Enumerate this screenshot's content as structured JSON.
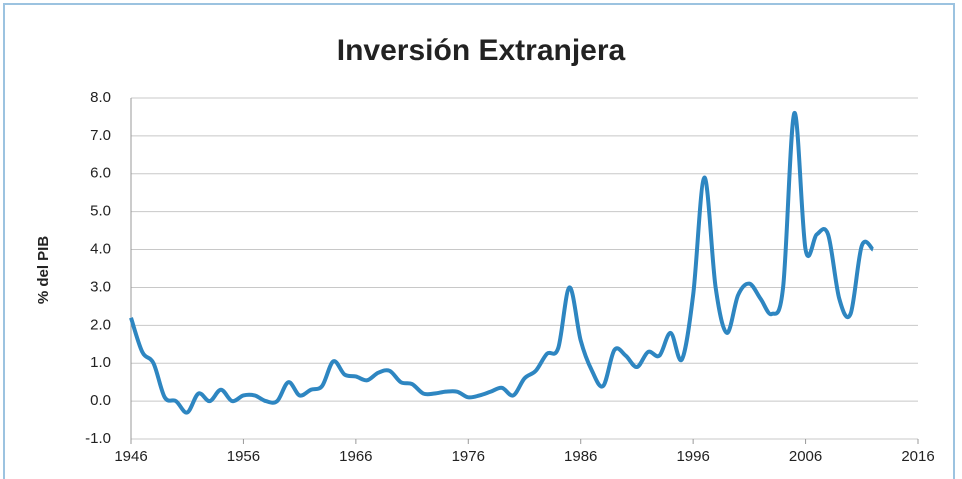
{
  "chart_data": {
    "type": "line",
    "title": "Inversión Extranjera",
    "ylabel": "% del PIB",
    "x": [
      1946,
      1947,
      1948,
      1949,
      1950,
      1951,
      1952,
      1953,
      1954,
      1955,
      1956,
      1957,
      1958,
      1959,
      1960,
      1961,
      1962,
      1963,
      1964,
      1965,
      1966,
      1967,
      1968,
      1969,
      1970,
      1971,
      1972,
      1973,
      1974,
      1975,
      1976,
      1977,
      1978,
      1979,
      1980,
      1981,
      1982,
      1983,
      1984,
      1985,
      1986,
      1987,
      1988,
      1989,
      1990,
      1991,
      1992,
      1993,
      1994,
      1995,
      1996,
      1997,
      1998,
      1999,
      2000,
      2001,
      2002,
      2003,
      2004,
      2005,
      2006,
      2007,
      2008,
      2009,
      2010,
      2011,
      2012
    ],
    "series": [
      {
        "name": "Inversión Extranjera",
        "color": "#2e86c1",
        "values": [
          2.2,
          1.3,
          1.0,
          0.1,
          0.0,
          -0.3,
          0.2,
          0.0,
          0.3,
          0.0,
          0.15,
          0.15,
          0.0,
          0.0,
          0.5,
          0.15,
          0.3,
          0.4,
          1.05,
          0.7,
          0.65,
          0.55,
          0.75,
          0.8,
          0.5,
          0.45,
          0.2,
          0.2,
          0.25,
          0.25,
          0.1,
          0.15,
          0.25,
          0.35,
          0.15,
          0.6,
          0.8,
          1.25,
          1.4,
          3.0,
          1.6,
          0.8,
          0.4,
          1.35,
          1.2,
          0.9,
          1.3,
          1.2,
          1.8,
          1.1,
          2.8,
          5.9,
          3.0,
          1.8,
          2.8,
          3.1,
          2.7,
          2.3,
          3.0,
          7.6,
          4.0,
          4.4,
          4.4,
          2.7,
          2.3,
          4.1,
          4.0
        ]
      }
    ],
    "xlim": [
      1946,
      2016
    ],
    "xticks": [
      1946,
      1956,
      1966,
      1976,
      1986,
      1996,
      2006,
      2016
    ],
    "ylim": [
      -1,
      8
    ],
    "yticks": [
      {
        "value": -1,
        "label": "-1.0"
      },
      {
        "value": 0,
        "label": "0.0"
      },
      {
        "value": 1,
        "label": "1.0"
      },
      {
        "value": 2,
        "label": "2.0"
      },
      {
        "value": 3,
        "label": "3.0"
      },
      {
        "value": 4,
        "label": "4.0"
      },
      {
        "value": 5,
        "label": "5.0"
      },
      {
        "value": 6,
        "label": "6.0"
      },
      {
        "value": 7,
        "label": "7.0"
      },
      {
        "value": 8,
        "label": "8.0"
      }
    ],
    "grid": true
  }
}
